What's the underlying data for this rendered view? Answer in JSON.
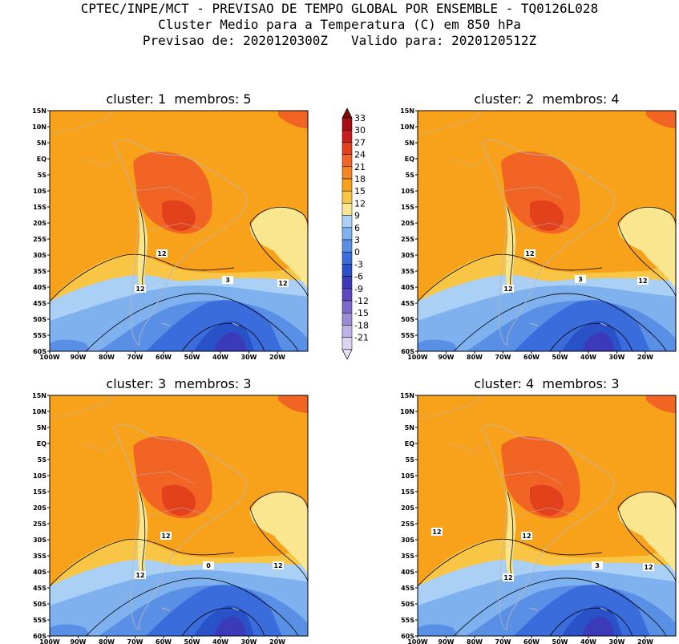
{
  "header": {
    "line1": "CPTEC/INPE/MCT - PREVISAO DE TEMPO GLOBAL POR ENSEMBLE - TQ0126L028",
    "line2": "Cluster Medio para a Temperatura (C) em 850 hPa",
    "line3": "Previsao de: 2020120300Z   Valido para: 2020120512Z"
  },
  "panels": [
    {
      "title": "cluster: 1  membros: 5",
      "contour_labels": [
        "12",
        "12",
        "12",
        "3"
      ]
    },
    {
      "title": "cluster: 2  membros: 4",
      "contour_labels": [
        "12",
        "12",
        "12",
        "3"
      ]
    },
    {
      "title": "cluster: 3  membros: 3",
      "contour_labels": [
        "12",
        "12",
        "12",
        "0"
      ]
    },
    {
      "title": "cluster: 4  membros: 3",
      "contour_labels": [
        "12",
        "12",
        "12",
        "12",
        "3"
      ]
    }
  ],
  "axes": {
    "lat_ticks": [
      "15N",
      "10N",
      "5N",
      "EQ",
      "5S",
      "10S",
      "15S",
      "20S",
      "25S",
      "30S",
      "35S",
      "40S",
      "45S",
      "50S",
      "55S",
      "60S"
    ],
    "lon_ticks": [
      "100W",
      "90W",
      "80W",
      "70W",
      "60W",
      "50W",
      "40W",
      "30W",
      "20W"
    ]
  },
  "colorbar": {
    "labels": [
      "33",
      "30",
      "27",
      "24",
      "21",
      "18",
      "15",
      "12",
      "9",
      "6",
      "3",
      "0",
      "-3",
      "-6",
      "-9",
      "-12",
      "-15",
      "-18",
      "-21"
    ],
    "colors": [
      "#a50f15",
      "#c81c1c",
      "#e3401c",
      "#f26424",
      "#f58426",
      "#f7a21a",
      "#f9c545",
      "#fbe690",
      "#aad0f5",
      "#7fb1ee",
      "#5a8fe6",
      "#3a6cdc",
      "#2a52c8",
      "#3b3ab8",
      "#5c49c0",
      "#7f69cc",
      "#9e8bd8",
      "#c1b1e6",
      "#ddd2f1"
    ],
    "top_arrow_color": "#7a0a0e",
    "bottom_arrow_color": "#ece6f8"
  },
  "map_colors": {
    "warm_orange": "#f7a21a",
    "light_orange": "#f9c545",
    "pale_yellow": "#fbe690",
    "hot": "#f26424",
    "hotter": "#e3401c",
    "sky": "#aad0f5",
    "blue": "#7fb1ee",
    "mid_blue": "#5a8fe6",
    "deep_blue": "#3a6cdc",
    "darker_blue": "#2a52c8",
    "violet": "#3b3ab8",
    "land_outline": "#b8b8b8"
  }
}
